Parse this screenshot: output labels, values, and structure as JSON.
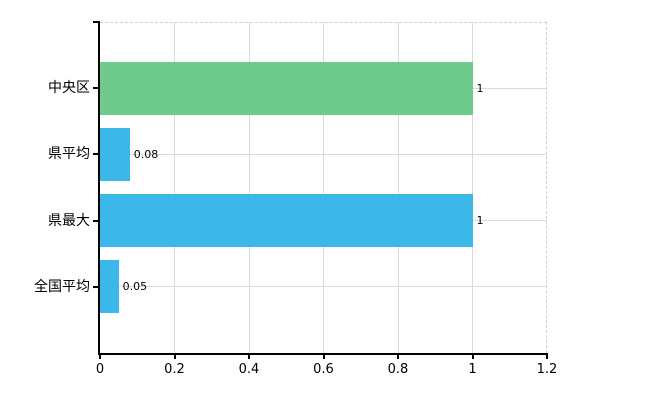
{
  "chart_data": {
    "type": "bar",
    "orientation": "horizontal",
    "title": "",
    "categories": [
      "中央区",
      "県平均",
      "県最大",
      "全国平均"
    ],
    "values": [
      1,
      0.08,
      1,
      0.05
    ],
    "data_labels": [
      "1",
      "0.08",
      "1",
      "0.05"
    ],
    "bar_colors": [
      "#6ecb8c",
      "#3cb7e9",
      "#3cb7e9",
      "#3cb7e9"
    ],
    "xlim": [
      0,
      1.2
    ],
    "x_ticks": [
      {
        "value": 0,
        "label": "0"
      },
      {
        "value": 0.2,
        "label": "0.2"
      },
      {
        "value": 0.4,
        "label": "0.4"
      },
      {
        "value": 0.6,
        "label": "0.6"
      },
      {
        "value": 0.8,
        "label": "0.8"
      },
      {
        "value": 1,
        "label": "1"
      },
      {
        "value": 1.2,
        "label": "1.2"
      }
    ],
    "grid": true,
    "legend": false,
    "colors": {
      "grid": "#d5ddd5",
      "axis": "#000000",
      "frame_dashed": "#cfcfcf",
      "text": "#000000",
      "background": "#ffffff"
    }
  }
}
